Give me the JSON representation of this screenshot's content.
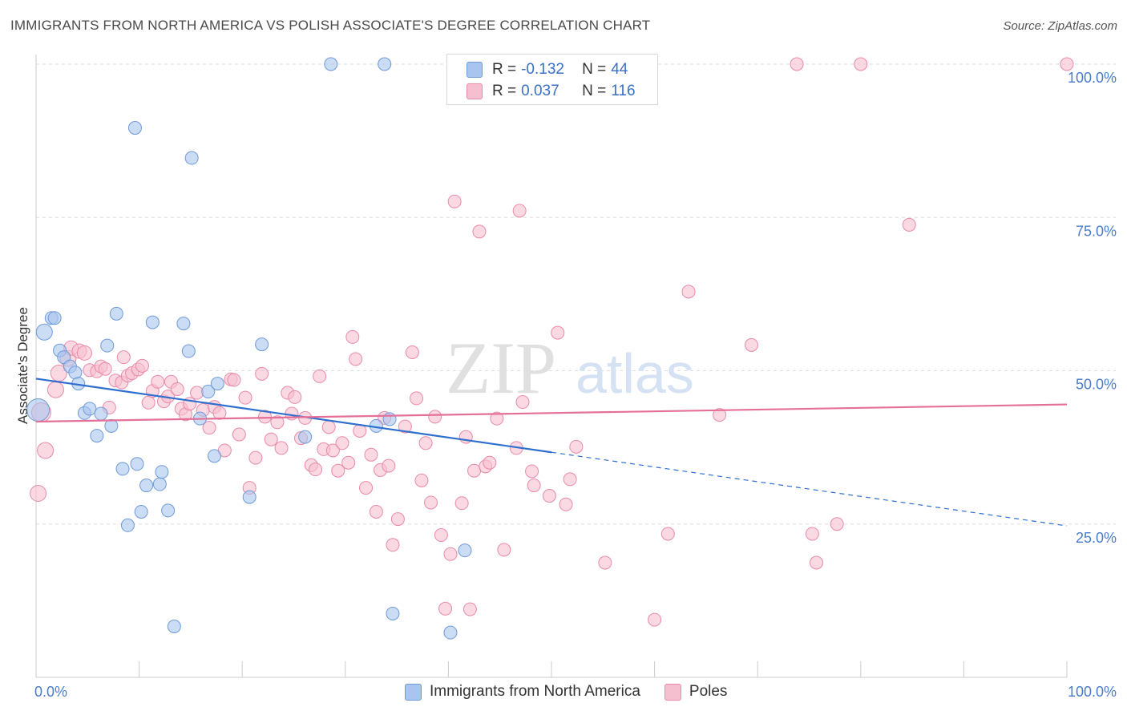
{
  "title": "IMMIGRANTS FROM NORTH AMERICA VS POLISH ASSOCIATE'S DEGREE CORRELATION CHART",
  "source": "Source: ZipAtlas.com",
  "watermark": {
    "zip": "ZIP",
    "atlas": "atlas"
  },
  "legend": {
    "series1": {
      "r_label": "R = ",
      "r_value": "-0.132",
      "n_label": "N = ",
      "n_value": "44"
    },
    "series2": {
      "r_label": "R = ",
      "r_value": "0.037",
      "n_label": "N = ",
      "n_value": "116"
    }
  },
  "bottom_legend": {
    "series1": "Immigrants from North America",
    "series2": "Poles"
  },
  "colors": {
    "blue_fill": "#a9c4ee",
    "blue_stroke": "#6f9ad8",
    "blue_line": "#2e6fce",
    "pink_fill": "#f6bfd0",
    "pink_stroke": "#e98aa9",
    "pink_line": "#e4709a",
    "axis_text": "#4a7cc9",
    "grid": "#dddddd"
  },
  "chart_data": {
    "type": "scatter",
    "title": "IMMIGRANTS FROM NORTH AMERICA VS POLISH ASSOCIATE'S DEGREE CORRELATION CHART",
    "xlabel": "",
    "ylabel": "Associate's Degree",
    "xlim": [
      0,
      100
    ],
    "ylim": [
      0,
      100
    ],
    "x_tick_labels": [
      "0.0%",
      "100.0%"
    ],
    "y_tick_labels": [
      {
        "value": 25,
        "label": "25.0%"
      },
      {
        "value": 50,
        "label": "50.0%"
      },
      {
        "value": 75,
        "label": "75.0%"
      },
      {
        "value": 100,
        "label": "100.0%"
      }
    ],
    "series": [
      {
        "name": "Immigrants from North America",
        "color": "blue",
        "R": -0.132,
        "N": 44,
        "trend": {
          "x0": 0,
          "y0": 48.7,
          "x1": 50,
          "y1": 36.7,
          "dash_to_x": 100,
          "dash_to_y": 24.7
        },
        "points": [
          [
            0.2,
            43.6,
            14
          ],
          [
            0.8,
            56.3,
            10
          ],
          [
            1.5,
            58.6,
            8
          ],
          [
            1.8,
            58.6,
            8
          ],
          [
            2.3,
            53.3,
            8
          ],
          [
            2.7,
            52.2,
            8
          ],
          [
            3.3,
            50.7,
            8
          ],
          [
            3.8,
            49.7,
            8
          ],
          [
            4.1,
            47.9,
            8
          ],
          [
            4.7,
            43.1,
            8
          ],
          [
            5.2,
            43.8,
            8
          ],
          [
            5.9,
            39.4,
            8
          ],
          [
            6.3,
            43.0,
            8
          ],
          [
            6.9,
            54.1,
            8
          ],
          [
            7.3,
            41.0,
            8
          ],
          [
            7.8,
            59.3,
            8
          ],
          [
            8.4,
            34.0,
            8
          ],
          [
            8.9,
            24.8,
            8
          ],
          [
            9.6,
            89.6,
            8
          ],
          [
            9.8,
            34.8,
            8
          ],
          [
            10.2,
            27.0,
            8
          ],
          [
            10.7,
            31.3,
            8
          ],
          [
            11.3,
            57.9,
            8
          ],
          [
            12.0,
            31.5,
            8
          ],
          [
            12.2,
            33.5,
            8
          ],
          [
            12.8,
            27.2,
            8
          ],
          [
            13.4,
            8.3,
            8
          ],
          [
            14.3,
            57.7,
            8
          ],
          [
            14.8,
            53.2,
            8
          ],
          [
            15.1,
            84.7,
            8
          ],
          [
            15.9,
            42.2,
            8
          ],
          [
            16.7,
            46.6,
            8
          ],
          [
            17.3,
            36.1,
            8
          ],
          [
            17.6,
            47.9,
            8
          ],
          [
            20.7,
            29.4,
            8
          ],
          [
            21.9,
            54.3,
            8
          ],
          [
            26.1,
            39.2,
            8
          ],
          [
            28.6,
            100.0,
            8
          ],
          [
            33.0,
            41.0,
            8
          ],
          [
            34.3,
            42.1,
            8
          ],
          [
            33.8,
            100.0,
            8
          ],
          [
            34.6,
            10.4,
            8
          ],
          [
            40.2,
            7.3,
            8
          ],
          [
            41.6,
            20.7,
            8
          ]
        ]
      },
      {
        "name": "Poles",
        "color": "pink",
        "R": 0.037,
        "N": 116,
        "trend": {
          "x0": 0,
          "y0": 41.7,
          "x1": 100,
          "y1": 44.5
        },
        "points": [
          [
            0.2,
            30.0,
            10
          ],
          [
            0.5,
            43.2,
            12
          ],
          [
            0.9,
            37.0,
            10
          ],
          [
            1.9,
            46.9,
            10
          ],
          [
            2.2,
            49.6,
            10
          ],
          [
            3.1,
            52.0,
            10
          ],
          [
            3.4,
            53.7,
            9
          ],
          [
            4.2,
            53.2,
            9
          ],
          [
            4.7,
            52.9,
            9
          ],
          [
            5.2,
            50.1,
            8
          ],
          [
            5.9,
            49.9,
            8
          ],
          [
            6.3,
            50.7,
            8
          ],
          [
            6.7,
            50.3,
            8
          ],
          [
            7.1,
            44.0,
            8
          ],
          [
            7.7,
            48.4,
            8
          ],
          [
            8.3,
            48.1,
            8
          ],
          [
            8.5,
            52.2,
            8
          ],
          [
            8.9,
            49.2,
            8
          ],
          [
            9.3,
            49.6,
            8
          ],
          [
            9.9,
            50.2,
            8
          ],
          [
            10.3,
            50.8,
            8
          ],
          [
            10.9,
            44.8,
            8
          ],
          [
            11.3,
            46.7,
            8
          ],
          [
            11.8,
            48.2,
            8
          ],
          [
            12.4,
            45.0,
            8
          ],
          [
            12.8,
            45.8,
            8
          ],
          [
            13.1,
            48.2,
            8
          ],
          [
            13.7,
            47.0,
            8
          ],
          [
            14.1,
            43.8,
            8
          ],
          [
            14.5,
            42.9,
            8
          ],
          [
            14.9,
            44.6,
            8
          ],
          [
            15.6,
            46.4,
            8
          ],
          [
            16.2,
            43.6,
            8
          ],
          [
            16.8,
            40.7,
            8
          ],
          [
            17.3,
            44.1,
            8
          ],
          [
            17.8,
            43.1,
            8
          ],
          [
            18.3,
            37.0,
            8
          ],
          [
            18.9,
            48.6,
            8
          ],
          [
            19.2,
            48.5,
            8
          ],
          [
            19.7,
            39.6,
            8
          ],
          [
            20.3,
            45.6,
            8
          ],
          [
            20.7,
            30.9,
            8
          ],
          [
            21.3,
            35.8,
            8
          ],
          [
            21.9,
            49.5,
            8
          ],
          [
            22.2,
            42.5,
            8
          ],
          [
            22.8,
            38.8,
            8
          ],
          [
            23.4,
            41.6,
            8
          ],
          [
            23.8,
            37.4,
            8
          ],
          [
            24.4,
            46.4,
            8
          ],
          [
            24.8,
            43.0,
            8
          ],
          [
            25.1,
            45.7,
            8
          ],
          [
            25.7,
            39.0,
            8
          ],
          [
            26.1,
            42.3,
            8
          ],
          [
            26.7,
            34.6,
            8
          ],
          [
            27.1,
            33.9,
            8
          ],
          [
            27.5,
            49.1,
            8
          ],
          [
            27.9,
            37.2,
            8
          ],
          [
            28.4,
            40.8,
            8
          ],
          [
            28.8,
            37.0,
            8
          ],
          [
            29.3,
            33.7,
            8
          ],
          [
            29.7,
            38.2,
            8
          ],
          [
            30.3,
            35.0,
            8
          ],
          [
            30.7,
            55.5,
            8
          ],
          [
            31.0,
            51.9,
            8
          ],
          [
            31.4,
            40.2,
            8
          ],
          [
            32.0,
            30.9,
            8
          ],
          [
            32.5,
            36.3,
            8
          ],
          [
            33.0,
            27.0,
            8
          ],
          [
            33.4,
            33.8,
            8
          ],
          [
            33.8,
            42.3,
            8
          ],
          [
            34.2,
            34.5,
            8
          ],
          [
            34.6,
            21.6,
            8
          ],
          [
            35.1,
            25.8,
            8
          ],
          [
            35.8,
            40.9,
            8
          ],
          [
            36.5,
            53.0,
            8
          ],
          [
            36.9,
            45.5,
            8
          ],
          [
            37.4,
            32.1,
            8
          ],
          [
            37.8,
            38.2,
            8
          ],
          [
            38.3,
            28.5,
            8
          ],
          [
            38.7,
            42.5,
            8
          ],
          [
            39.3,
            23.2,
            8
          ],
          [
            39.7,
            11.2,
            8
          ],
          [
            40.2,
            20.1,
            8
          ],
          [
            40.6,
            77.6,
            8
          ],
          [
            41.3,
            28.4,
            8
          ],
          [
            41.7,
            39.2,
            8
          ],
          [
            42.1,
            11.1,
            8
          ],
          [
            42.5,
            33.7,
            8
          ],
          [
            43.0,
            72.7,
            8
          ],
          [
            43.6,
            34.4,
            8
          ],
          [
            44.0,
            35.0,
            8
          ],
          [
            44.7,
            42.2,
            8
          ],
          [
            45.4,
            20.8,
            8
          ],
          [
            46.6,
            37.4,
            8
          ],
          [
            46.9,
            76.1,
            8
          ],
          [
            47.2,
            44.9,
            8
          ],
          [
            48.1,
            33.6,
            8
          ],
          [
            48.3,
            31.3,
            8
          ],
          [
            49.8,
            29.6,
            8
          ],
          [
            50.6,
            56.2,
            8
          ],
          [
            51.4,
            28.2,
            8
          ],
          [
            51.8,
            32.3,
            8
          ],
          [
            52.4,
            37.6,
            8
          ],
          [
            55.2,
            18.7,
            8
          ],
          [
            60.0,
            9.4,
            8
          ],
          [
            61.3,
            23.4,
            8
          ],
          [
            63.3,
            62.9,
            8
          ],
          [
            66.3,
            42.8,
            8
          ],
          [
            69.4,
            54.2,
            8
          ],
          [
            73.8,
            100.0,
            8
          ],
          [
            75.3,
            23.4,
            8
          ],
          [
            75.7,
            18.7,
            8
          ],
          [
            77.7,
            25.0,
            8
          ],
          [
            80.0,
            100.0,
            8
          ],
          [
            84.7,
            73.8,
            8
          ],
          [
            100.0,
            100.0,
            8
          ]
        ]
      }
    ]
  }
}
